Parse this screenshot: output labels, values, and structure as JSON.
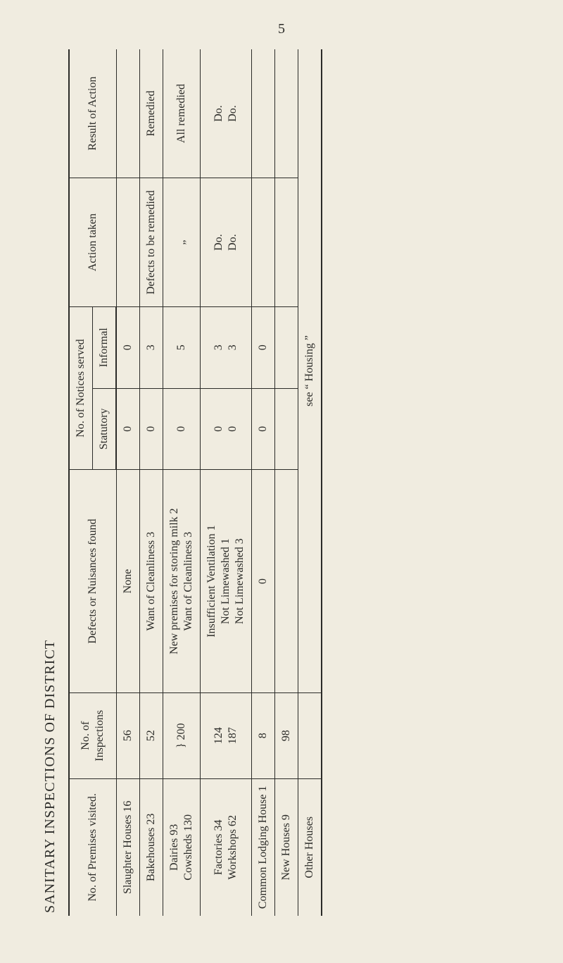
{
  "page_number": "5",
  "table_title": "SANITARY INSPECTIONS OF DISTRICT",
  "headers": {
    "premises": "No. of Premises visited.",
    "inspections": "No. of Inspections",
    "defects": "Defects or Nuisances found",
    "notices": "No. of Notices served",
    "statutory": "Statutory",
    "informal": "Informal",
    "action": "Action taken",
    "result": "Result of Action"
  },
  "rows": [
    {
      "premises": "Slaughter Houses 16",
      "insp": "56",
      "defects": "None",
      "stat": "0",
      "inf": "0",
      "action": "",
      "result": ""
    },
    {
      "premises": "Bakehouses 23",
      "insp": "52",
      "defects": "Want of Cleanliness 3",
      "stat": "0",
      "inf": "3",
      "action": "Defects to be remedied",
      "result": "Remedied"
    },
    {
      "premises": "Dairies 93\nCowsheds 130",
      "insp": "} 200",
      "defects": "New premises for storing milk 2\nWant of Cleanliness 3",
      "stat": "0",
      "inf": "5",
      "action": "„",
      "result": "All remedied"
    },
    {
      "premises": "Factories 34\nWorkshops 62",
      "insp": "124\n187",
      "defects": "Insufficient Ventilation 1\nNot Limewashed 1\nNot Limewashed 3",
      "stat": "0\n0",
      "inf": "3\n3",
      "action": "Do.\nDo.",
      "result": "Do.\nDo."
    },
    {
      "premises": "Common Lodging House 1",
      "insp": "8",
      "defects": "0",
      "stat": "0",
      "inf": "0",
      "action": "",
      "result": ""
    },
    {
      "premises": "New Houses 9",
      "insp": "98",
      "defects": "",
      "stat": "",
      "inf": "",
      "action": "",
      "result": ""
    },
    {
      "premises": "Other Houses",
      "insp": "",
      "defects": "see “ Housing ”",
      "defects_colspan": 5,
      "stat": "",
      "inf": "",
      "action": "",
      "result": ""
    }
  ],
  "style": {
    "background": "#f0ece0",
    "ink": "#2b2b28",
    "font": "Georgia, 'Times New Roman', serif",
    "border_w": 1.5,
    "outer_w": 2.5,
    "fs_body": 16,
    "fs_title": 20
  }
}
